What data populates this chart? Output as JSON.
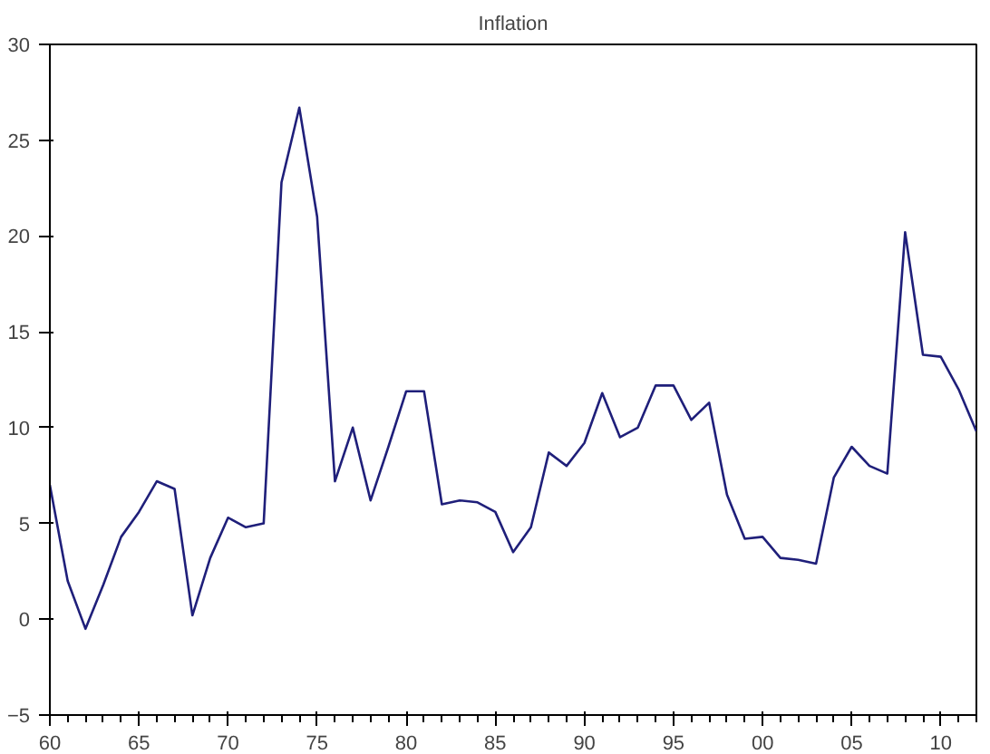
{
  "chart_data": {
    "type": "line",
    "title": "Inflation",
    "x": [
      1960,
      1961,
      1962,
      1963,
      1964,
      1965,
      1966,
      1967,
      1968,
      1969,
      1970,
      1971,
      1972,
      1973,
      1974,
      1975,
      1976,
      1977,
      1978,
      1979,
      1980,
      1981,
      1982,
      1983,
      1984,
      1985,
      1986,
      1987,
      1988,
      1989,
      1990,
      1991,
      1992,
      1993,
      1994,
      1995,
      1996,
      1997,
      1998,
      1999,
      2000,
      2001,
      2002,
      2003,
      2004,
      2005,
      2006,
      2007,
      2008,
      2009,
      2010,
      2011,
      2012
    ],
    "series": [
      {
        "color": "#1f1f7a",
        "values": [
          7.0,
          2.0,
          -0.5,
          1.8,
          4.3,
          5.6,
          7.2,
          6.8,
          0.2,
          3.2,
          5.3,
          4.8,
          5.0,
          22.8,
          26.7,
          21.0,
          7.2,
          10.0,
          6.2,
          9.0,
          11.9,
          11.9,
          6.0,
          6.2,
          6.1,
          5.6,
          3.5,
          4.8,
          8.7,
          8.0,
          9.2,
          11.8,
          9.5,
          10.0,
          12.2,
          12.2,
          10.4,
          11.3,
          6.5,
          4.2,
          4.3,
          3.2,
          3.1,
          2.9,
          7.4,
          9.0,
          8.0,
          7.6,
          20.2,
          13.8,
          13.7,
          12.0,
          9.8
        ]
      }
    ],
    "xlim": [
      1960,
      2012
    ],
    "ylim": [
      -5,
      30
    ],
    "xticks": [
      {
        "value": 1960,
        "label": "60"
      },
      {
        "value": 1965,
        "label": "65"
      },
      {
        "value": 1970,
        "label": "70"
      },
      {
        "value": 1975,
        "label": "75"
      },
      {
        "value": 1980,
        "label": "80"
      },
      {
        "value": 1985,
        "label": "85"
      },
      {
        "value": 1990,
        "label": "90"
      },
      {
        "value": 1995,
        "label": "95"
      },
      {
        "value": 2000,
        "label": "00"
      },
      {
        "value": 2005,
        "label": "05"
      },
      {
        "value": 2010,
        "label": "10"
      }
    ],
    "yticks": [
      -5,
      0,
      5,
      10,
      15,
      20,
      25,
      30
    ],
    "grid": false,
    "line_style": "solid",
    "marker": "none"
  }
}
